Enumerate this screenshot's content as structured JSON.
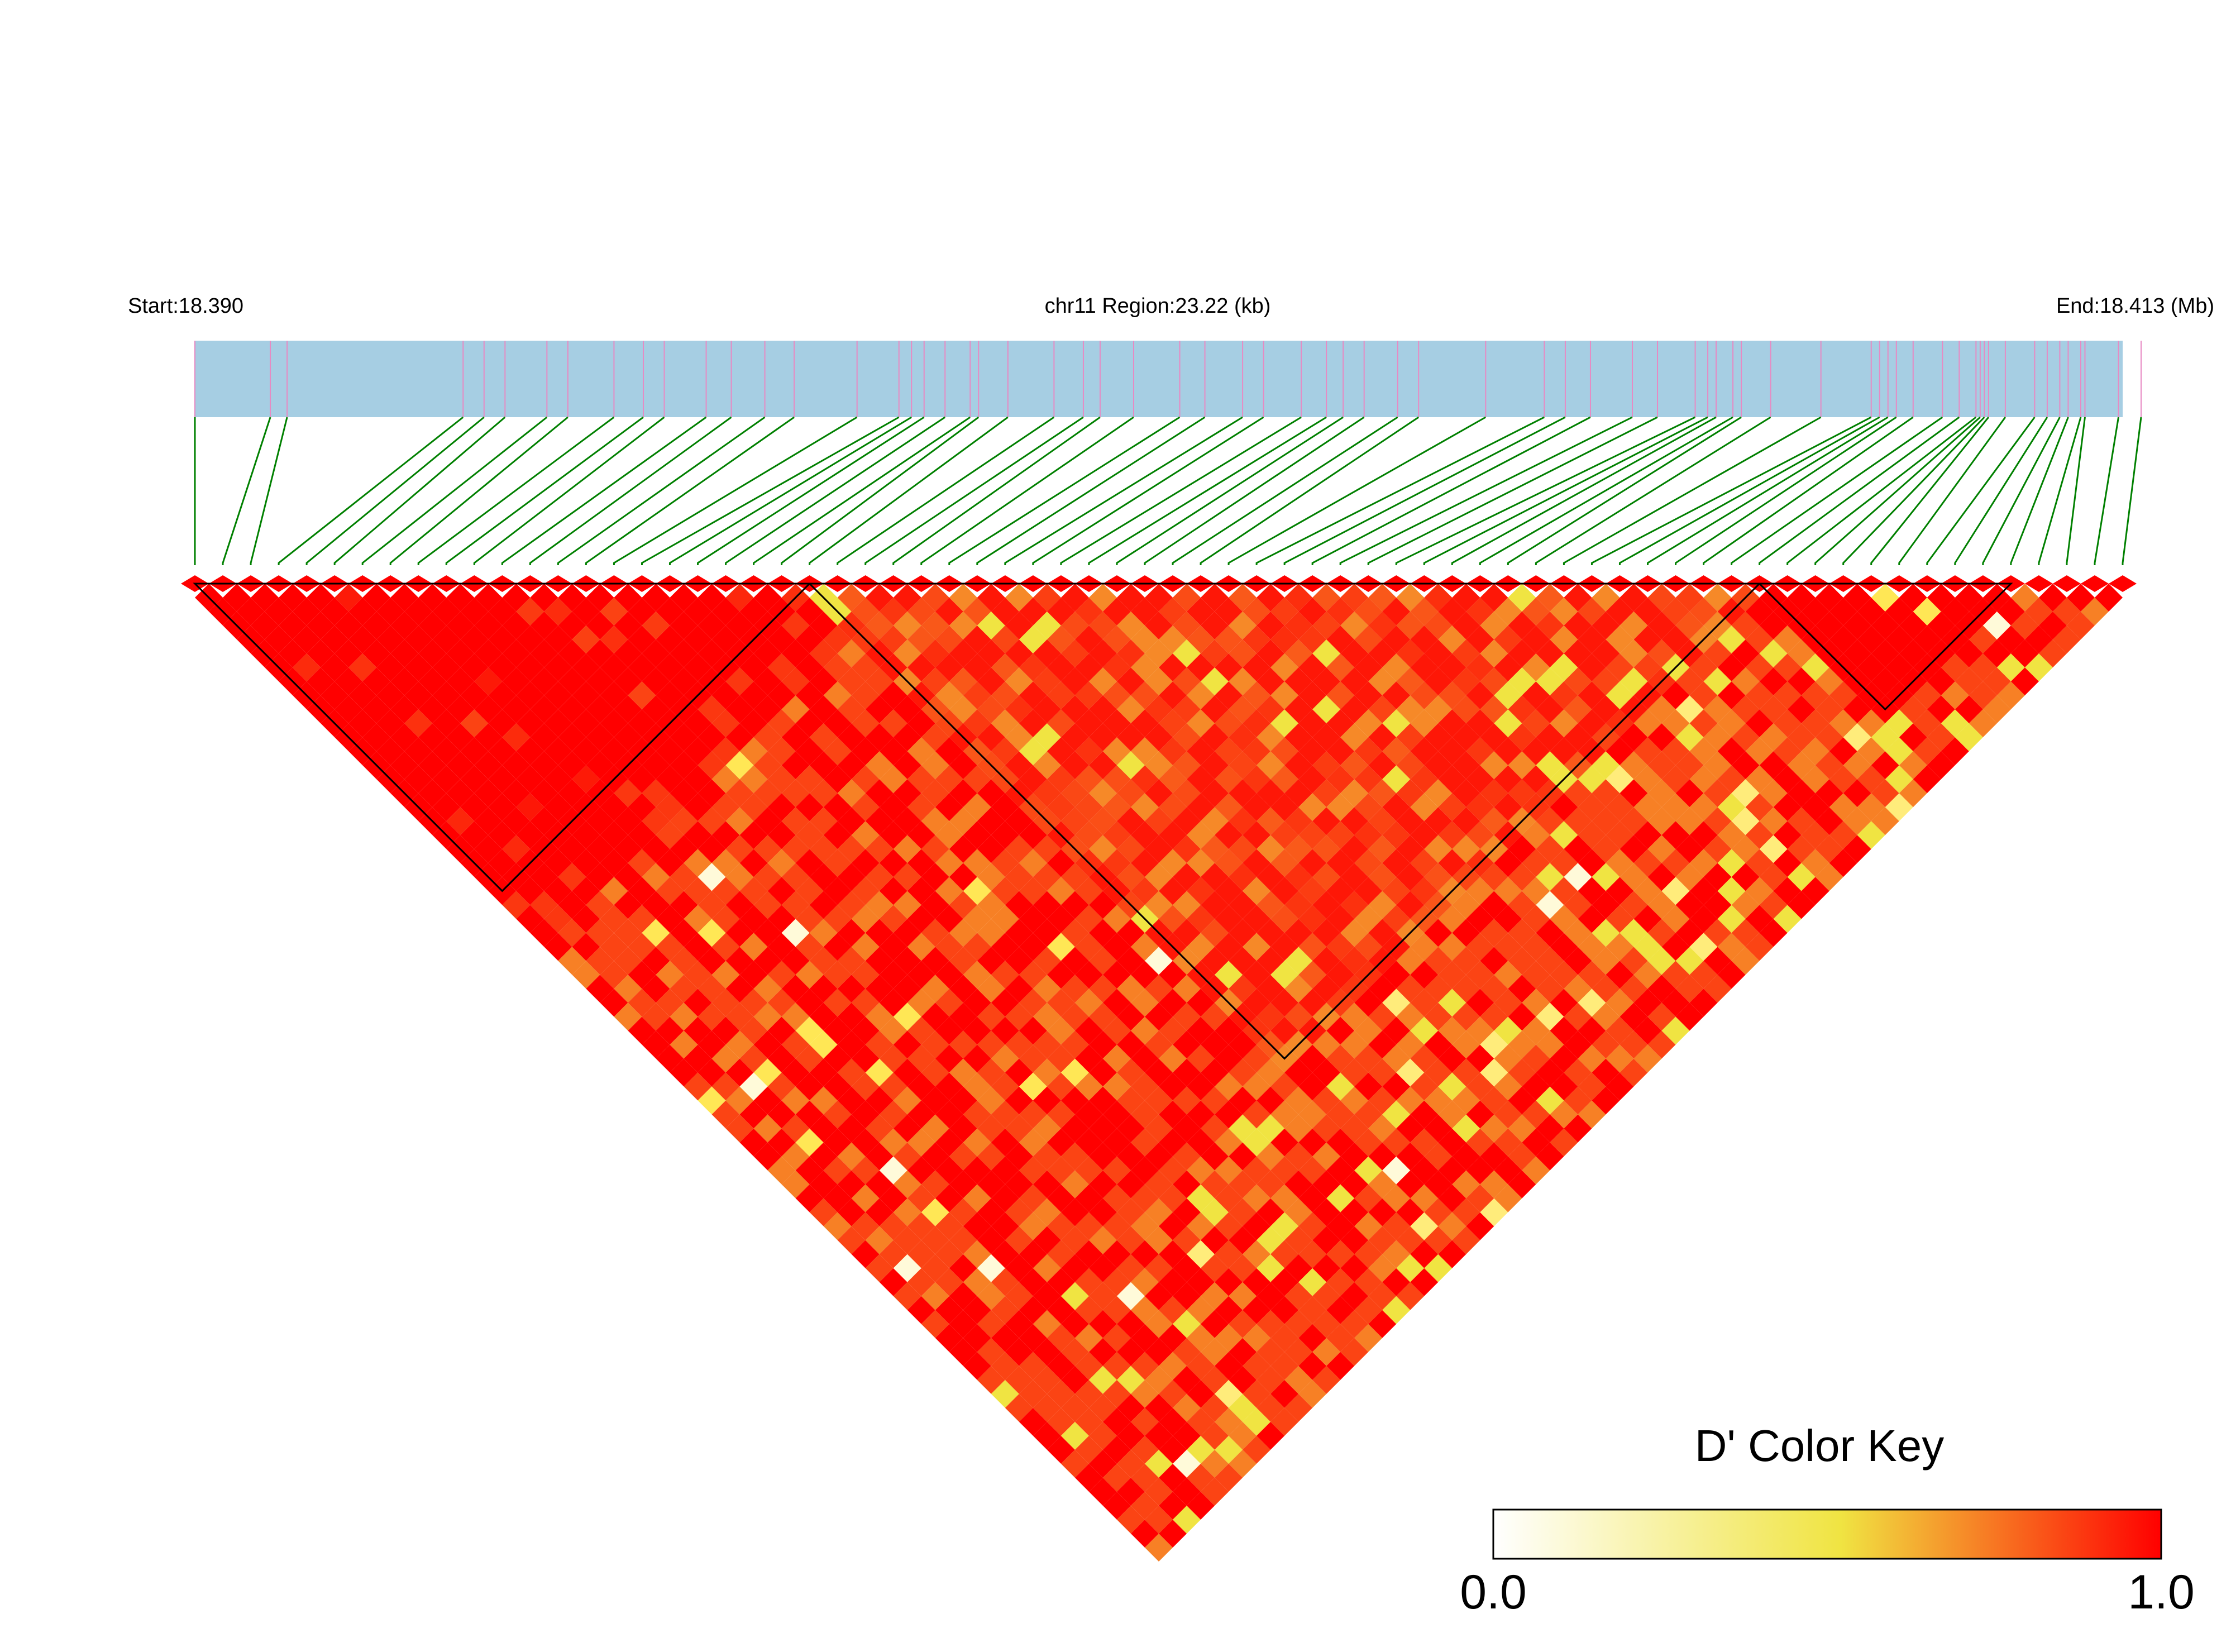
{
  "header": {
    "start_label": "Start:18.390",
    "region_label": "chr11 Region:23.22 (kb)",
    "end_label": "End:18.413 (Mb)"
  },
  "colors": {
    "track": "#a6cee3",
    "snp_tick": "#e78ac3",
    "connector": "#008000",
    "ld_high": "#ff0000",
    "block_border": "#000000",
    "key_low": "#ffffff",
    "key_mid": "#f0e442",
    "key_high": "#ff0000"
  },
  "legend": {
    "title": "D' Color Key",
    "min_label": "0.0",
    "max_label": "1.0"
  },
  "chart_data": {
    "type": "heatmap",
    "chromosome": "chr11",
    "region_start_mb": 18.39,
    "region_end_mb": 18.413,
    "region_length_kb": 23.22,
    "metric": "D'",
    "value_range": [
      0,
      1
    ],
    "snp_positions_mb": [
      18.39,
      18.3909,
      18.3911,
      18.3932,
      18.39345,
      18.3937,
      18.3942,
      18.39445,
      18.395,
      18.39535,
      18.3956,
      18.3961,
      18.3964,
      18.3968,
      18.39715,
      18.3979,
      18.3984,
      18.39855,
      18.3987,
      18.39895,
      18.39925,
      18.39935,
      18.3997,
      18.40025,
      18.4006,
      18.4008,
      18.4012,
      18.40175,
      18.40205,
      18.4025,
      18.40275,
      18.4032,
      18.4035,
      18.4037,
      18.40395,
      18.40435,
      18.4046,
      18.4054,
      18.4061,
      18.40635,
      18.40665,
      18.40715,
      18.40745,
      18.4079,
      18.40805,
      18.40815,
      18.40835,
      18.40845,
      18.4088,
      18.4094,
      18.41,
      18.4101,
      18.4102,
      18.4103,
      18.4105,
      18.41085,
      18.41105,
      18.41125,
      18.4113,
      18.41135,
      18.4114,
      18.4116,
      18.41195,
      18.4121,
      18.41225,
      18.41235,
      18.4125,
      18.41255,
      18.41295,
      18.41322
    ],
    "haplotype_blocks": [
      {
        "first_snp": 1,
        "last_snp": 23
      },
      {
        "first_snp": 23,
        "last_snp": 57
      },
      {
        "first_snp": 57,
        "last_snp": 66
      }
    ],
    "ld_pattern": "near-complete LD (D' ~ 1) across block 1; moderate LD (D' ~ 0.6-0.9) with scattered low cells between snps 24-57 and between blocks; strong LD within block 3"
  }
}
